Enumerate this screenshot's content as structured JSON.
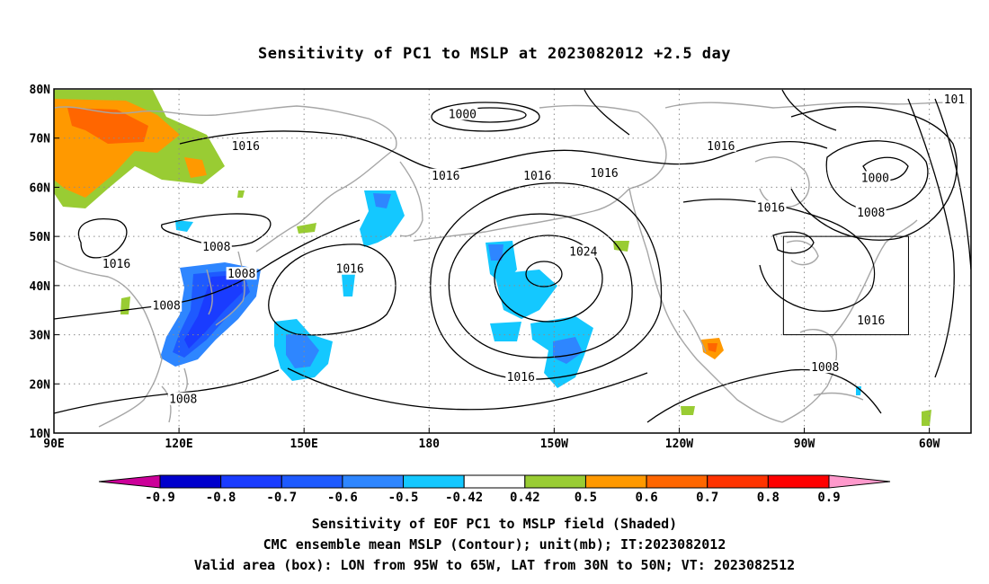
{
  "title": "Sensitivity of PC1 to MSLP at 2023082012 +2.5 day",
  "captions": [
    "Sensitivity of EOF PC1 to MSLP field (Shaded)",
    "CMC ensemble mean MSLP (Contour); unit(mb); IT:2023082012",
    "Valid area (box): LON from 95W to 65W, LAT from 30N to 50N; VT: 2023082512"
  ],
  "map": {
    "lon_range": [
      90,
      310
    ],
    "lat_range": [
      10,
      80
    ],
    "grid": "dotted",
    "lon_ticks": [
      {
        "lon": 90,
        "label": "90E"
      },
      {
        "lon": 120,
        "label": "120E"
      },
      {
        "lon": 150,
        "label": "150E"
      },
      {
        "lon": 180,
        "label": "180"
      },
      {
        "lon": 210,
        "label": "150W"
      },
      {
        "lon": 240,
        "label": "120W"
      },
      {
        "lon": 270,
        "label": "90W"
      },
      {
        "lon": 300,
        "label": "60W"
      }
    ],
    "lat_ticks": [
      {
        "lat": 10,
        "label": "10N"
      },
      {
        "lat": 20,
        "label": "20N"
      },
      {
        "lat": 30,
        "label": "30N"
      },
      {
        "lat": 40,
        "label": "40N"
      },
      {
        "lat": 50,
        "label": "50N"
      },
      {
        "lat": 60,
        "label": "60N"
      },
      {
        "lat": 70,
        "label": "70N"
      },
      {
        "lat": 80,
        "label": "80N"
      }
    ],
    "valid_box": {
      "lon_min": 265,
      "lon_max": 295,
      "lat_min": 30,
      "lat_max": 50
    },
    "contour_labels": [
      {
        "lon": 105,
        "lat": 44.5,
        "text": "1016"
      },
      {
        "lon": 129,
        "lat": 48,
        "text": "1008"
      },
      {
        "lon": 135,
        "lat": 42.5,
        "text": "1008"
      },
      {
        "lon": 117,
        "lat": 36,
        "text": "1008"
      },
      {
        "lon": 121,
        "lat": 17,
        "text": "1008"
      },
      {
        "lon": 136,
        "lat": 68.5,
        "text": "1016"
      },
      {
        "lon": 161,
        "lat": 43.5,
        "text": "1016"
      },
      {
        "lon": 188,
        "lat": 75,
        "text": "1000"
      },
      {
        "lon": 184,
        "lat": 62.5,
        "text": "1016"
      },
      {
        "lon": 206,
        "lat": 62.5,
        "text": "1016"
      },
      {
        "lon": 222,
        "lat": 63,
        "text": "1016"
      },
      {
        "lon": 250,
        "lat": 68.5,
        "text": "1016"
      },
      {
        "lon": 217,
        "lat": 47,
        "text": "1024"
      },
      {
        "lon": 202,
        "lat": 21.5,
        "text": "1016"
      },
      {
        "lon": 262,
        "lat": 56,
        "text": "1016"
      },
      {
        "lon": 287,
        "lat": 62,
        "text": "1000"
      },
      {
        "lon": 286,
        "lat": 55,
        "text": "1008"
      },
      {
        "lon": 306,
        "lat": 78,
        "text": "101"
      },
      {
        "lon": 286,
        "lat": 33,
        "text": "1016"
      },
      {
        "lon": 275,
        "lat": 23.5,
        "text": "1008"
      }
    ]
  },
  "colorbar": {
    "labels": [
      "-0.9",
      "-0.8",
      "-0.7",
      "-0.6",
      "-0.5",
      "-0.42",
      "0.42",
      "0.5",
      "0.6",
      "0.7",
      "0.8",
      "0.9"
    ],
    "colors": [
      "#cc0099",
      "#0000cc",
      "#1a3cff",
      "#1e5aff",
      "#2e86ff",
      "#14c8ff",
      "#ffffff",
      "#99cc33",
      "#ff9900",
      "#ff6600",
      "#ff3300",
      "#ff0000",
      "#ff99cc"
    ]
  }
}
